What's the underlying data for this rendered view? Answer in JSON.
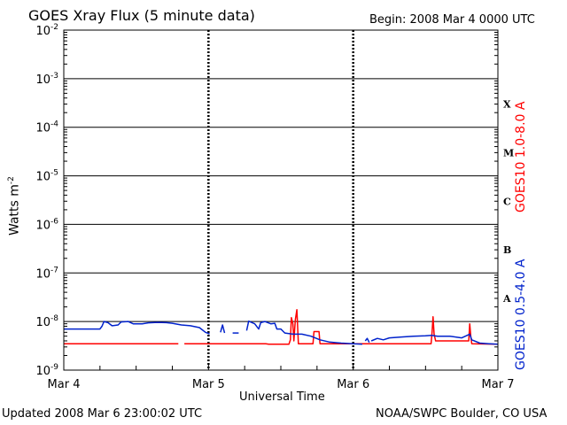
{
  "header": {
    "title": "GOES Xray Flux (5 minute data)",
    "begin": "Begin:  2008 Mar 4 0000 UTC"
  },
  "footer": {
    "updated": "Updated 2008 Mar  6 23:00:02 UTC",
    "source": "NOAA/SWPC Boulder, CO USA"
  },
  "colors": {
    "long": "#ff0000",
    "short": "#0022cc",
    "axis": "#000000"
  },
  "chart_data": {
    "type": "line",
    "title": "GOES Xray Flux (5 minute data)",
    "xlabel": "Universal Time",
    "ylabel": "Watts m",
    "ylabel_sup": "-2",
    "yscale": "log",
    "ylim": [
      1e-09,
      0.01
    ],
    "xlim": [
      "2008-03-04T00:00",
      "2008-03-07T00:00"
    ],
    "x_ticks": [
      {
        "t": "2008-03-04T00:00",
        "label": "Mar 4"
      },
      {
        "t": "2008-03-05T00:00",
        "label": "Mar 5"
      },
      {
        "t": "2008-03-06T00:00",
        "label": "Mar 6"
      },
      {
        "t": "2008-03-07T00:00",
        "label": "Mar 7"
      }
    ],
    "y_ticks": [
      {
        "v": 1e-09,
        "base": "10",
        "exp": "-9"
      },
      {
        "v": 1e-08,
        "base": "10",
        "exp": "-8"
      },
      {
        "v": 1e-07,
        "base": "10",
        "exp": "-7"
      },
      {
        "v": 1e-06,
        "base": "10",
        "exp": "-6"
      },
      {
        "v": 1e-05,
        "base": "10",
        "exp": "-5"
      },
      {
        "v": 0.0001,
        "base": "10",
        "exp": "-4"
      },
      {
        "v": 0.001,
        "base": "10",
        "exp": "-3"
      },
      {
        "v": 0.01,
        "base": "10",
        "exp": "-2"
      }
    ],
    "grid": "horizontal at each decade",
    "flare_classes": [
      {
        "label": "A",
        "v": 3e-08
      },
      {
        "label": "B",
        "v": 3e-07
      },
      {
        "label": "C",
        "v": 3e-06
      },
      {
        "label": "M",
        "v": 3e-05
      },
      {
        "label": "X",
        "v": 0.0003
      }
    ],
    "series": [
      {
        "name": "GOES10 1.0-8.0 A",
        "color": "#ff0000",
        "segments": [
          [
            [
              "2008-03-04T00:00",
              3.5e-09
            ],
            [
              "2008-03-04T19:00",
              3.5e-09
            ]
          ],
          [
            [
              "2008-03-04T20:00",
              3.5e-09
            ],
            [
              "2008-03-05T09:30",
              3.5e-09
            ],
            [
              "2008-03-05T10:00",
              3.4e-09
            ],
            [
              "2008-03-05T13:20",
              3.4e-09
            ],
            [
              "2008-03-05T13:35",
              4.2e-09
            ],
            [
              "2008-03-05T13:45",
              1.2e-08
            ],
            [
              "2008-03-05T14:00",
              9e-09
            ],
            [
              "2008-03-05T14:10",
              4e-09
            ],
            [
              "2008-03-05T14:25",
              1.1e-08
            ],
            [
              "2008-03-05T14:40",
              1.75e-08
            ],
            [
              "2008-03-05T14:55",
              3.5e-09
            ],
            [
              "2008-03-05T17:20",
              3.5e-09
            ],
            [
              "2008-03-05T17:30",
              6.2e-09
            ],
            [
              "2008-03-05T18:20",
              6.2e-09
            ],
            [
              "2008-03-05T18:30",
              3.5e-09
            ],
            [
              "2008-03-06T12:55",
              3.5e-09
            ],
            [
              "2008-03-06T13:05",
              6e-09
            ],
            [
              "2008-03-06T13:15",
              1.25e-08
            ],
            [
              "2008-03-06T13:25",
              5.5e-09
            ],
            [
              "2008-03-06T13:40",
              4e-09
            ],
            [
              "2008-03-06T19:10",
              4e-09
            ],
            [
              "2008-03-06T19:20",
              9e-09
            ],
            [
              "2008-03-06T19:30",
              5e-09
            ],
            [
              "2008-03-06T19:40",
              3.5e-09
            ],
            [
              "2008-03-07T00:00",
              3.4e-09
            ]
          ]
        ]
      },
      {
        "name": "GOES10 0.5-4.0 A",
        "color": "#0022cc",
        "segments": [
          [
            [
              "2008-03-04T00:00",
              7e-09
            ],
            [
              "2008-03-04T06:00",
              7e-09
            ],
            [
              "2008-03-04T06:20",
              8e-09
            ],
            [
              "2008-03-04T06:40",
              1e-08
            ],
            [
              "2008-03-04T07:20",
              9.5e-09
            ],
            [
              "2008-03-04T08:00",
              8.2e-09
            ],
            [
              "2008-03-04T09:00",
              8.5e-09
            ],
            [
              "2008-03-04T09:30",
              9.8e-09
            ],
            [
              "2008-03-04T10:40",
              1e-08
            ],
            [
              "2008-03-04T11:30",
              9e-09
            ],
            [
              "2008-03-04T13:00",
              9e-09
            ],
            [
              "2008-03-04T14:00",
              9.4e-09
            ],
            [
              "2008-03-04T15:30",
              9.6e-09
            ],
            [
              "2008-03-04T17:00",
              9.5e-09
            ],
            [
              "2008-03-04T18:00",
              9.2e-09
            ],
            [
              "2008-03-04T19:30",
              8.5e-09
            ],
            [
              "2008-03-04T21:00",
              8.2e-09
            ],
            [
              "2008-03-04T22:30",
              7.5e-09
            ],
            [
              "2008-03-04T23:30",
              6e-09
            ],
            [
              "2008-03-05T00:10",
              5.6e-09
            ]
          ],
          [
            [
              "2008-03-05T02:00",
              6e-09
            ],
            [
              "2008-03-05T02:20",
              8.5e-09
            ],
            [
              "2008-03-05T02:40",
              5.8e-09
            ]
          ],
          [
            [
              "2008-03-05T04:00",
              5.8e-09
            ],
            [
              "2008-03-05T05:00",
              5.8e-09
            ]
          ],
          [
            [
              "2008-03-05T06:20",
              6.5e-09
            ],
            [
              "2008-03-05T06:40",
              1.02e-08
            ],
            [
              "2008-03-05T07:40",
              9e-09
            ],
            [
              "2008-03-05T08:20",
              7e-09
            ],
            [
              "2008-03-05T08:40",
              9.5e-09
            ],
            [
              "2008-03-05T09:20",
              1e-08
            ],
            [
              "2008-03-05T10:20",
              9e-09
            ],
            [
              "2008-03-05T11:00",
              9.2e-09
            ],
            [
              "2008-03-05T11:20",
              7e-09
            ],
            [
              "2008-03-05T12:00",
              7e-09
            ],
            [
              "2008-03-05T12:40",
              5.8e-09
            ],
            [
              "2008-03-05T14:00",
              5.5e-09
            ],
            [
              "2008-03-05T15:30",
              5.5e-09
            ],
            [
              "2008-03-05T17:00",
              5e-09
            ],
            [
              "2008-03-05T18:30",
              4.2e-09
            ],
            [
              "2008-03-05T20:00",
              3.8e-09
            ],
            [
              "2008-03-05T22:00",
              3.6e-09
            ],
            [
              "2008-03-06T00:00",
              3.5e-09
            ],
            [
              "2008-03-06T01:30",
              3.4e-09
            ]
          ],
          [
            [
              "2008-03-06T02:00",
              4e-09
            ],
            [
              "2008-03-06T02:20",
              4.5e-09
            ],
            [
              "2008-03-06T02:40",
              3.7e-09
            ]
          ],
          [
            [
              "2008-03-06T03:00",
              4e-09
            ],
            [
              "2008-03-06T04:00",
              4.5e-09
            ],
            [
              "2008-03-06T05:00",
              4.2e-09
            ],
            [
              "2008-03-06T06:00",
              4.6e-09
            ],
            [
              "2008-03-06T08:00",
              4.8e-09
            ],
            [
              "2008-03-06T10:00",
              5e-09
            ],
            [
              "2008-03-06T12:00",
              5.1e-09
            ],
            [
              "2008-03-06T13:00",
              5.2e-09
            ],
            [
              "2008-03-06T14:00",
              5e-09
            ],
            [
              "2008-03-06T16:00",
              5e-09
            ],
            [
              "2008-03-06T18:00",
              4.6e-09
            ],
            [
              "2008-03-06T19:20",
              5.5e-09
            ],
            [
              "2008-03-06T19:40",
              4.2e-09
            ],
            [
              "2008-03-06T21:00",
              3.6e-09
            ],
            [
              "2008-03-06T22:30",
              3.5e-09
            ],
            [
              "2008-03-07T00:00",
              3.4e-09
            ]
          ]
        ]
      }
    ]
  }
}
